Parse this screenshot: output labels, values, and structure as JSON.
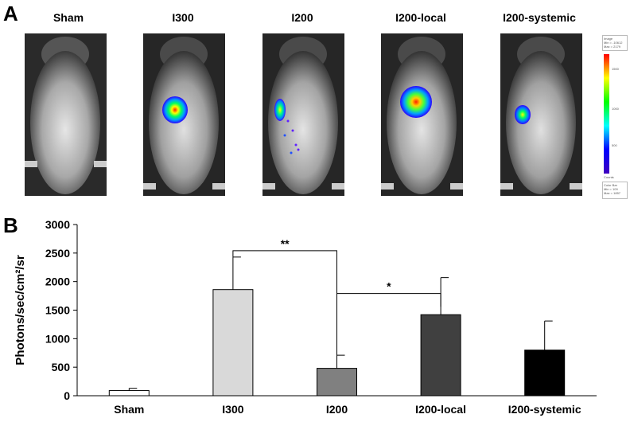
{
  "panel_a": {
    "label": "A",
    "images": [
      {
        "title": "Sham",
        "signal": "none"
      },
      {
        "title": "I300",
        "signal": "strong"
      },
      {
        "title": "I200",
        "signal": "weak"
      },
      {
        "title": "I200-local",
        "signal": "strong"
      },
      {
        "title": "I200-systemic",
        "signal": "medium"
      }
    ],
    "colorbar": {
      "image_label": "Image",
      "image_min": "Min = -10612",
      "image_max": "Max = 2179",
      "ticks": [
        "1500",
        "1000",
        "500"
      ],
      "counts_label": "Counts",
      "bar_label": "Color Bar",
      "bar_min": "Min = 109",
      "bar_max": "Max = 1857"
    }
  },
  "panel_b": {
    "label": "B"
  },
  "chart_data": {
    "type": "bar",
    "categories": [
      "Sham",
      "I300",
      "I200",
      "I200-local",
      "I200-systemic"
    ],
    "values": [
      90,
      1860,
      480,
      1420,
      800
    ],
    "errors": [
      40,
      570,
      230,
      650,
      510
    ],
    "colors": [
      "#ffffff",
      "#d9d9d9",
      "#808080",
      "#404040",
      "#000000"
    ],
    "ylabel": "Photons/sec/cm²/sr",
    "ylim": [
      0,
      3000
    ],
    "yticks": [
      "0",
      "500",
      "1000",
      "1500",
      "2000",
      "2500",
      "3000"
    ],
    "significance": [
      {
        "from": 1,
        "to": 2,
        "label": "**"
      },
      {
        "from": 2,
        "to": 3,
        "label": "*"
      }
    ]
  }
}
